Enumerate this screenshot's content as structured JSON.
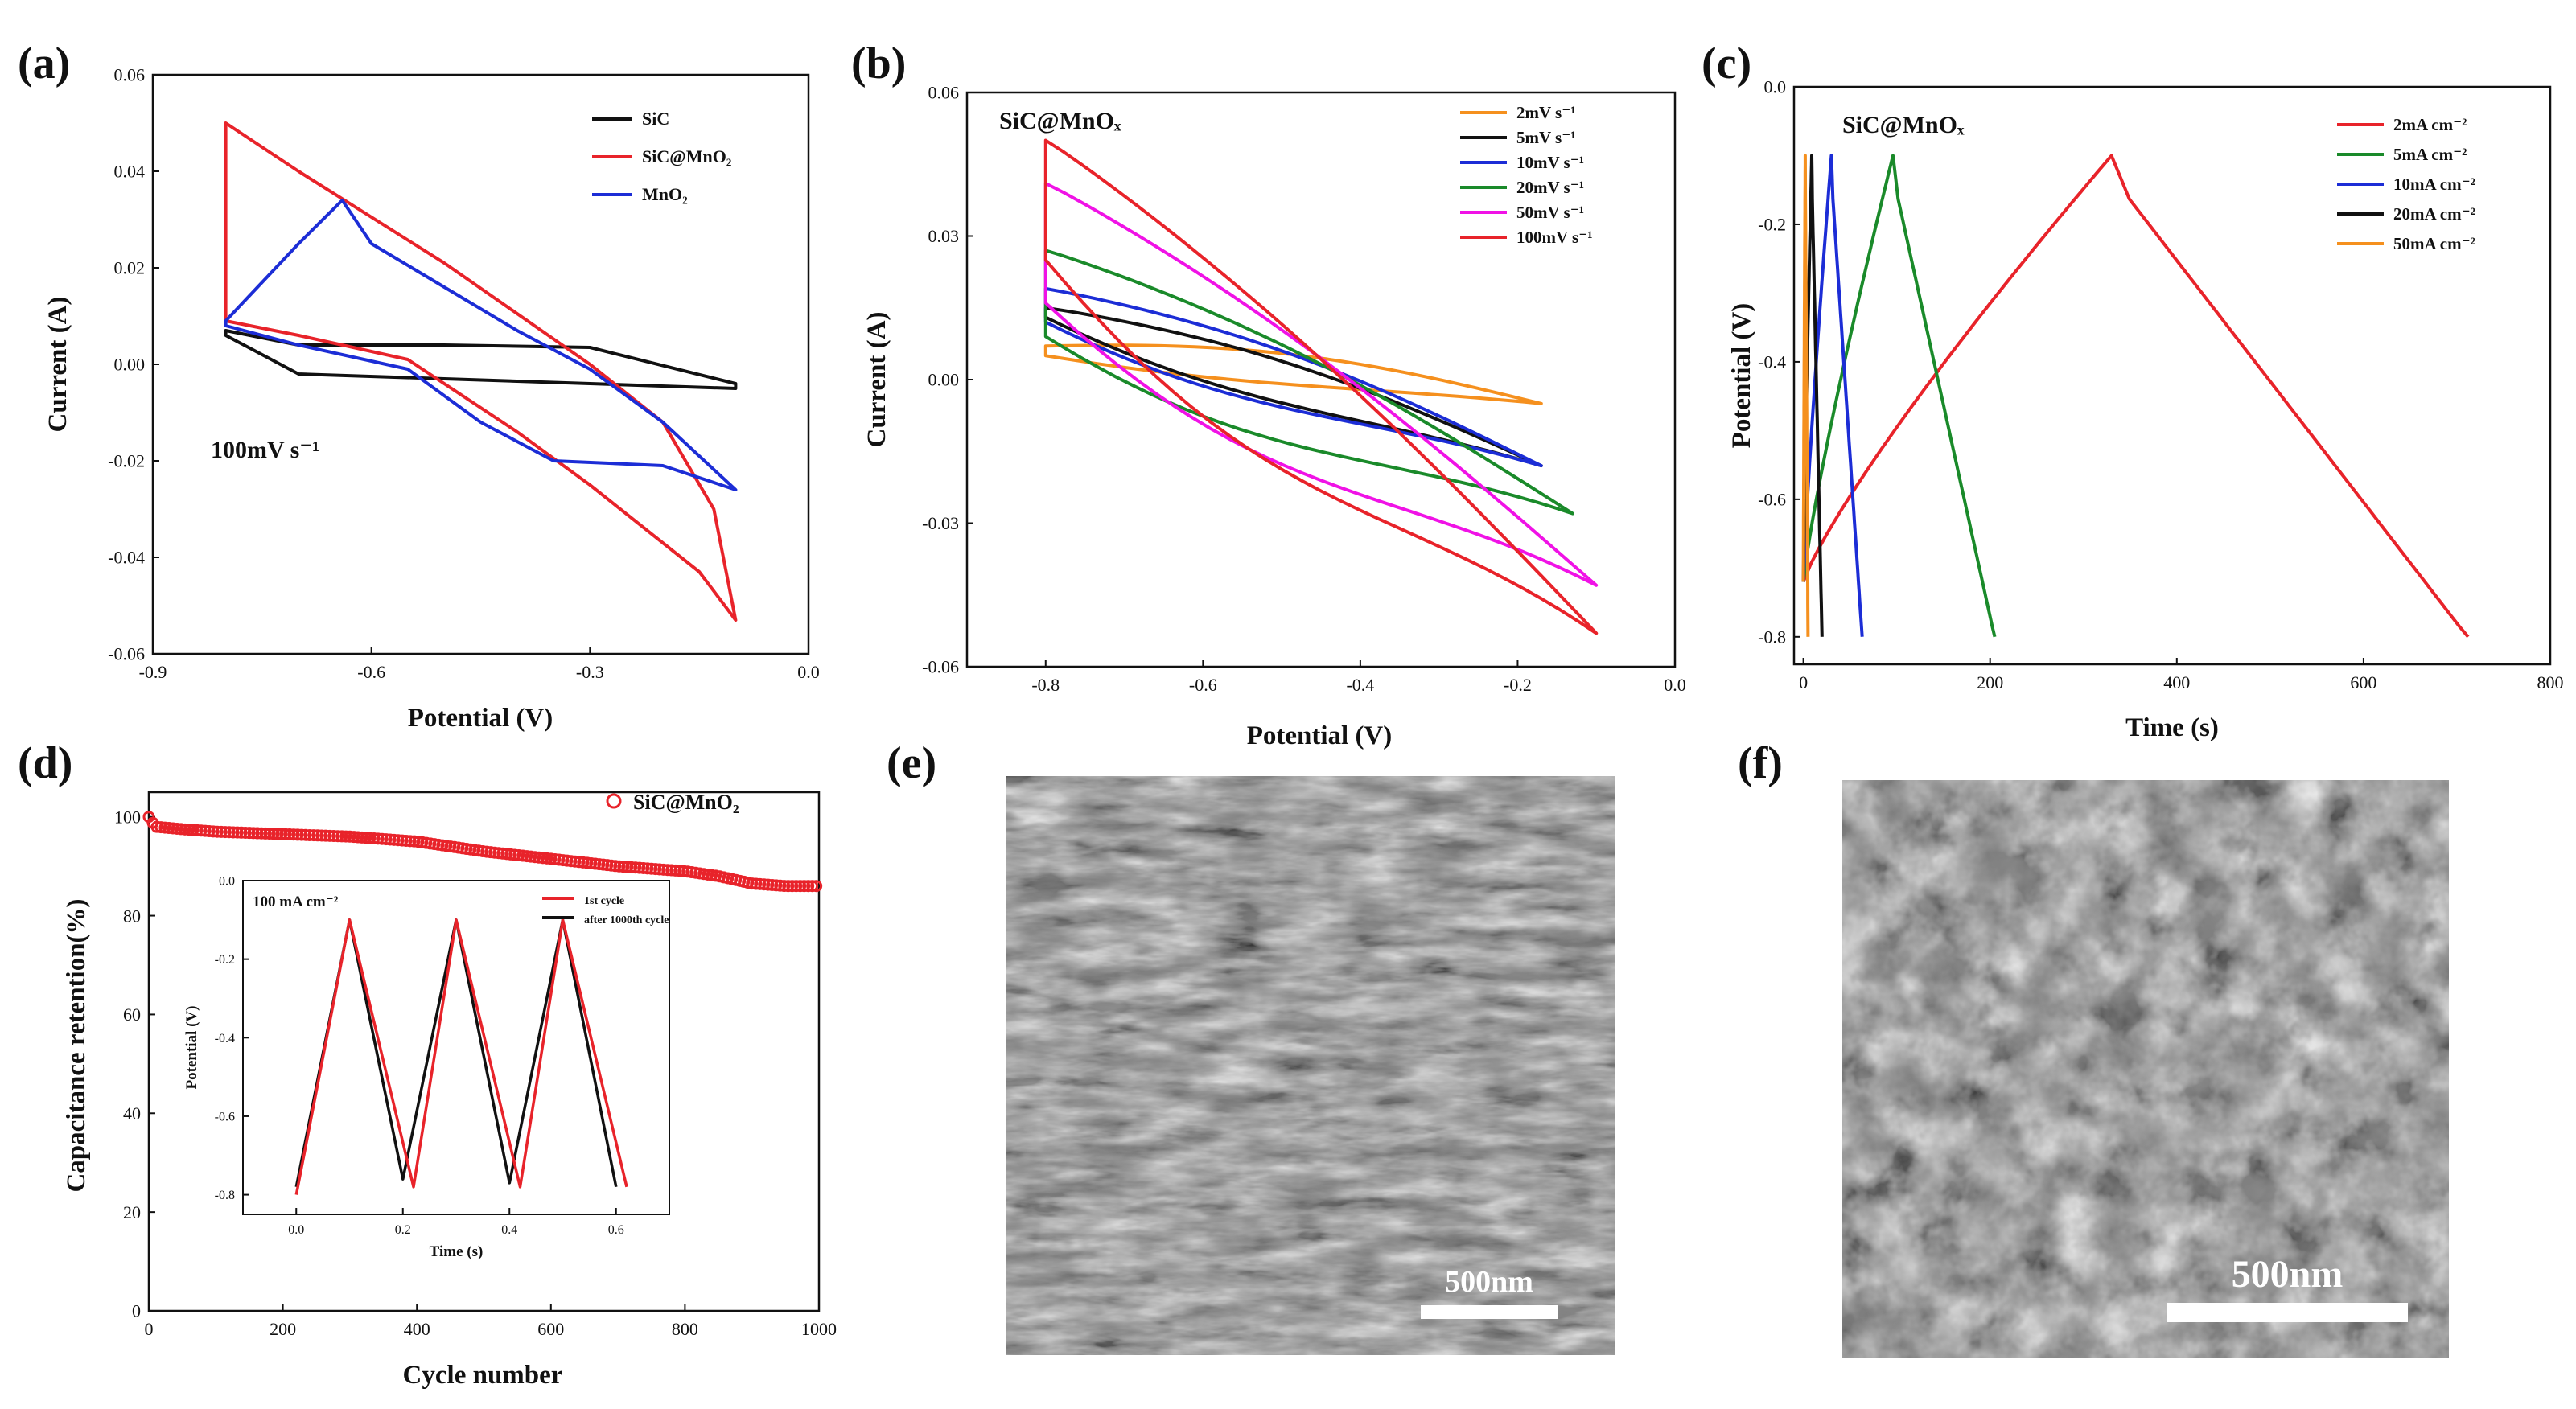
{
  "chart_data": [
    {
      "panel": "(a)",
      "type": "line",
      "xlabel": "Potential (V)",
      "ylabel": "Current (A)",
      "xlim": [
        -0.9,
        0.0
      ],
      "ylim": [
        -0.06,
        0.06
      ],
      "xticks": [
        "-0.9",
        "-0.6",
        "-0.3",
        "0.0"
      ],
      "yticks": [
        "0.06",
        "0.04",
        "0.02",
        "0.00",
        "-0.02",
        "-0.04",
        "-0.06"
      ],
      "annotation": "100mV s⁻¹",
      "series": [
        {
          "name": "SiC",
          "color": "#111111",
          "upper": [
            [
              -0.8,
              0.007
            ],
            [
              -0.7,
              0.004
            ],
            [
              -0.5,
              0.004
            ],
            [
              -0.3,
              0.0035
            ],
            [
              -0.1,
              -0.004
            ]
          ],
          "lower": [
            [
              -0.8,
              0.006
            ],
            [
              -0.7,
              -0.002
            ],
            [
              -0.5,
              -0.003
            ],
            [
              -0.3,
              -0.004
            ],
            [
              -0.1,
              -0.005
            ]
          ]
        },
        {
          "name": "SiC@MnO₂",
          "color": "#e8232a",
          "upper": [
            [
              -0.8,
              0.05
            ],
            [
              -0.7,
              0.04
            ],
            [
              -0.5,
              0.021
            ],
            [
              -0.3,
              0.0
            ],
            [
              -0.2,
              -0.012
            ],
            [
              -0.13,
              -0.03
            ],
            [
              -0.1,
              -0.053
            ]
          ],
          "lower": [
            [
              -0.8,
              0.009
            ],
            [
              -0.7,
              0.006
            ],
            [
              -0.55,
              0.001
            ],
            [
              -0.4,
              -0.014
            ],
            [
              -0.3,
              -0.025
            ],
            [
              -0.15,
              -0.043
            ],
            [
              -0.1,
              -0.053
            ]
          ]
        },
        {
          "name": "MnO₂",
          "color": "#1c2dd6",
          "upper": [
            [
              -0.8,
              0.009
            ],
            [
              -0.7,
              0.025
            ],
            [
              -0.64,
              0.034
            ],
            [
              -0.6,
              0.025
            ],
            [
              -0.5,
              0.016
            ],
            [
              -0.4,
              0.007
            ],
            [
              -0.3,
              -0.001
            ],
            [
              -0.2,
              -0.012
            ],
            [
              -0.1,
              -0.026
            ]
          ],
          "lower": [
            [
              -0.8,
              0.008
            ],
            [
              -0.7,
              0.004
            ],
            [
              -0.55,
              -0.001
            ],
            [
              -0.45,
              -0.012
            ],
            [
              -0.35,
              -0.02
            ],
            [
              -0.2,
              -0.021
            ],
            [
              -0.1,
              -0.026
            ]
          ]
        }
      ]
    },
    {
      "panel": "(b)",
      "type": "line",
      "title": "SiC@MnOₓ",
      "xlabel": "Potential (V)",
      "ylabel": "Current (A)",
      "xlim": [
        -0.9,
        0.0
      ],
      "ylim": [
        -0.06,
        0.06
      ],
      "xticks": [
        "-0.8",
        "-0.6",
        "-0.4",
        "-0.2",
        "0.0"
      ],
      "yticks": [
        "0.06",
        "0.03",
        "0.00",
        "-0.03",
        "-0.06"
      ],
      "series": [
        {
          "name": "2mV s⁻¹",
          "color": "#f5901e",
          "vmax": -0.17,
          "top": 0.007,
          "bot": 0.005,
          "end": -0.005
        },
        {
          "name": "5mV s⁻¹",
          "color": "#111111",
          "vmax": -0.17,
          "top": 0.015,
          "bot": 0.013,
          "end": -0.018
        },
        {
          "name": "10mV s⁻¹",
          "color": "#1c2dd6",
          "vmax": -0.17,
          "top": 0.019,
          "bot": 0.012,
          "end": -0.018
        },
        {
          "name": "20mV s⁻¹",
          "color": "#1a8a2a",
          "vmax": -0.13,
          "top": 0.027,
          "bot": 0.009,
          "end": -0.028
        },
        {
          "name": "50mV s⁻¹",
          "color": "#f012e6",
          "vmax": -0.1,
          "top": 0.041,
          "bot": 0.016,
          "end": -0.043
        },
        {
          "name": "100mV s⁻¹",
          "color": "#e8232a",
          "vmax": -0.1,
          "top": 0.05,
          "bot": 0.025,
          "end": -0.053
        }
      ]
    },
    {
      "panel": "(c)",
      "type": "line",
      "title": "SiC@MnOₓ",
      "xlabel": "Time (s)",
      "ylabel": "Potential (V)",
      "xlim": [
        -10,
        800
      ],
      "ylim": [
        -0.84,
        0.0
      ],
      "xticks": [
        "0",
        "200",
        "400",
        "600",
        "800"
      ],
      "yticks": [
        "0.0",
        "-0.2",
        "-0.4",
        "-0.6",
        "-0.8"
      ],
      "series": [
        {
          "name": "2mA cm⁻²",
          "color": "#e8232a",
          "peak_t": 330,
          "end_t": 712
        },
        {
          "name": "5mA cm⁻²",
          "color": "#1a8a2a",
          "peak_t": 96,
          "end_t": 205
        },
        {
          "name": "10mA cm⁻²",
          "color": "#1c2dd6",
          "peak_t": 30,
          "end_t": 63
        },
        {
          "name": "20mA cm⁻²",
          "color": "#111111",
          "peak_t": 9,
          "end_t": 20
        },
        {
          "name": "50mA cm⁻²",
          "color": "#f5901e",
          "peak_t": 2,
          "end_t": 5
        }
      ]
    },
    {
      "panel": "(d)",
      "type": "scatter",
      "xlabel": "Cycle number",
      "ylabel": "Capacitance retention(%)",
      "xlim": [
        0,
        1000
      ],
      "ylim": [
        0,
        105
      ],
      "xticks": [
        "0",
        "200",
        "400",
        "600",
        "800",
        "1000"
      ],
      "yticks": [
        "100",
        "80",
        "60",
        "40",
        "20",
        "0"
      ],
      "legend": "SiC@MnO₂",
      "series": [
        {
          "name": "SiC@MnO₂",
          "color": "#e8232a",
          "points": [
            [
              0,
              100
            ],
            [
              10,
              98
            ],
            [
              50,
              97.5
            ],
            [
              100,
              97
            ],
            [
              200,
              96.5
            ],
            [
              300,
              96
            ],
            [
              400,
              95
            ],
            [
              500,
              93
            ],
            [
              600,
              91.5
            ],
            [
              700,
              90
            ],
            [
              800,
              89
            ],
            [
              850,
              88
            ],
            [
              900,
              86.5
            ],
            [
              950,
              86
            ],
            [
              1000,
              86
            ]
          ]
        }
      ],
      "inset": {
        "annotation": "100 mA cm⁻²",
        "xlabel": "Time (s)",
        "ylabel": "Potential (V)",
        "xlim": [
          -0.1,
          0.7
        ],
        "ylim": [
          -0.85,
          0.0
        ],
        "xticks": [
          "0.0",
          "0.2",
          "0.4",
          "0.6"
        ],
        "yticks": [
          "0.0",
          "-0.2",
          "-0.4",
          "-0.6",
          "-0.8"
        ],
        "series": [
          {
            "name": "1st cycle",
            "color": "#e8232a",
            "points": [
              [
                0,
                -0.8
              ],
              [
                0.1,
                -0.1
              ],
              [
                0.22,
                -0.78
              ],
              [
                0.3,
                -0.1
              ],
              [
                0.42,
                -0.78
              ],
              [
                0.5,
                -0.1
              ],
              [
                0.62,
                -0.78
              ]
            ]
          },
          {
            "name": "after 1000th cycle",
            "color": "#111111",
            "points": [
              [
                0,
                -0.78
              ],
              [
                0.1,
                -0.1
              ],
              [
                0.2,
                -0.76
              ],
              [
                0.3,
                -0.1
              ],
              [
                0.4,
                -0.77
              ],
              [
                0.5,
                -0.1
              ],
              [
                0.6,
                -0.78
              ]
            ]
          }
        ]
      }
    }
  ],
  "panels": {
    "a": {
      "label": "(a)"
    },
    "b": {
      "label": "(b)"
    },
    "c": {
      "label": "(c)"
    },
    "d": {
      "label": "(d)"
    },
    "e": {
      "label": "(e)",
      "scale_bar": "500nm"
    },
    "f": {
      "label": "(f)",
      "scale_bar": "500nm"
    }
  },
  "legend_texts": {
    "a": [
      "SiC",
      "SiC@MnO₂",
      "MnO₂"
    ],
    "b": [
      "2mV s⁻¹",
      "5mV s⁻¹",
      "10mV s⁻¹",
      "20mV s⁻¹",
      "50mV s⁻¹",
      "100mV s⁻¹"
    ],
    "c": [
      "2mA cm⁻²",
      "5mA cm⁻²",
      "10mA cm⁻²",
      "20mA cm⁻²",
      "50mA cm⁻²"
    ],
    "d_inset": [
      "1st cycle",
      "after 1000th cycle"
    ]
  }
}
